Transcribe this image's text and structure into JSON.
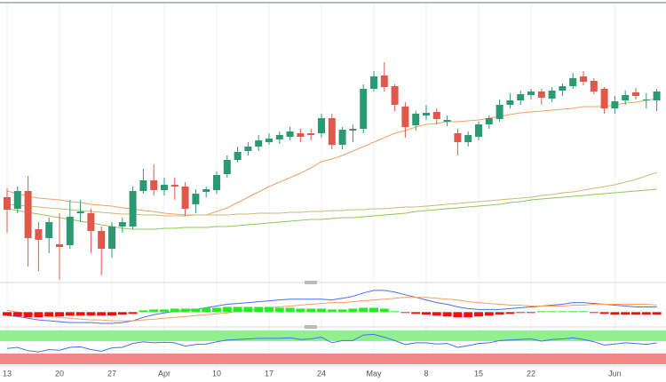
{
  "chart_data": [
    {
      "type": "candlestick",
      "categories": [
        "13",
        null,
        null,
        null,
        null,
        "20",
        null,
        null,
        null,
        null,
        "27",
        null,
        null,
        null,
        null,
        "Apr",
        null,
        null,
        null,
        null,
        "10",
        null,
        null,
        null,
        null,
        "17",
        null,
        null,
        null,
        null,
        "24",
        null,
        null,
        null,
        null,
        "May",
        null,
        null,
        null,
        null,
        "8",
        null,
        null,
        null,
        null,
        "15",
        null,
        null,
        null,
        null,
        "22",
        null,
        null,
        null,
        null,
        null,
        null,
        null,
        "Jun",
        null,
        null,
        null,
        null
      ],
      "open": [
        208,
        195,
        215,
        172,
        162,
        155,
        154,
        190,
        190,
        170,
        150,
        175,
        175,
        215,
        227,
        216,
        222,
        220,
        200,
        214,
        216,
        234,
        250,
        260,
        265,
        270,
        273,
        276,
        280,
        280,
        280,
        297,
        267,
        283,
        285,
        330,
        345,
        333,
        310,
        289,
        300,
        304,
        293,
        280,
        270,
        276,
        290,
        296,
        312,
        317,
        323,
        327,
        319,
        328,
        333,
        344,
        339,
        330,
        308,
        317,
        326,
        317,
        317
      ],
      "high": [
        218,
        220,
        232,
        180,
        185,
        190,
        205,
        205,
        195,
        175,
        180,
        185,
        220,
        240,
        245,
        230,
        230,
        225,
        217,
        220,
        237,
        255,
        265,
        270,
        278,
        280,
        282,
        287,
        285,
        285,
        302,
        302,
        287,
        290,
        335,
        350,
        360,
        335,
        315,
        305,
        312,
        308,
        300,
        285,
        282,
        293,
        300,
        318,
        325,
        328,
        330,
        330,
        332,
        336,
        348,
        350,
        342,
        332,
        322,
        328,
        331,
        325,
        330
      ],
      "low": [
        168,
        190,
        130,
        125,
        145,
        115,
        150,
        180,
        145,
        120,
        140,
        168,
        172,
        212,
        210,
        210,
        205,
        187,
        190,
        208,
        212,
        230,
        247,
        255,
        260,
        267,
        268,
        272,
        270,
        272,
        275,
        262,
        262,
        270,
        280,
        327,
        327,
        305,
        275,
        283,
        295,
        290,
        288,
        255,
        265,
        272,
        285,
        293,
        308,
        312,
        318,
        312,
        315,
        322,
        330,
        334,
        324,
        302,
        302,
        312,
        318,
        308,
        305
      ],
      "close": [
        194,
        215,
        162,
        160,
        180,
        152,
        186,
        192,
        170,
        150,
        175,
        180,
        215,
        227,
        216,
        222,
        220,
        195,
        212,
        217,
        233,
        250,
        259,
        265,
        272,
        274,
        278,
        282,
        276,
        278,
        297,
        267,
        284,
        285,
        330,
        344,
        332,
        312,
        287,
        302,
        303,
        296,
        295,
        270,
        278,
        290,
        297,
        312,
        317,
        324,
        327,
        320,
        328,
        333,
        342,
        338,
        327,
        308,
        316,
        323,
        322,
        318,
        327
      ],
      "up_color": "#2b9a72",
      "down_color": "#e0584a",
      "ylim": [
        115,
        425
      ],
      "lines": [
        {
          "color": "#f3a068",
          "values": [
            215,
            212,
            209,
            207,
            206,
            205,
            203,
            202,
            200,
            199,
            198,
            196,
            195,
            193,
            192,
            190,
            189,
            188,
            188,
            188,
            192,
            196,
            202,
            208,
            214,
            220,
            225,
            230,
            235,
            241,
            248,
            251,
            255,
            260,
            265,
            270,
            275,
            280,
            283,
            287,
            290,
            291,
            293,
            293,
            294,
            295,
            297,
            299,
            301,
            303,
            304,
            305,
            306,
            307,
            308,
            310,
            310,
            310,
            312,
            314,
            315,
            317,
            319
          ]
        },
        {
          "color": "#cdb877",
          "values": [
            200,
            199,
            198,
            197,
            196,
            195,
            194,
            193,
            192,
            191,
            190,
            189,
            189,
            188,
            188,
            187,
            187,
            187,
            188,
            188,
            188,
            188,
            189,
            189,
            190,
            190,
            190,
            191,
            191,
            192,
            192,
            193,
            193,
            194,
            194,
            195,
            195,
            196,
            197,
            197,
            198,
            199,
            200,
            201,
            202,
            203,
            204,
            205,
            206,
            207,
            208,
            210,
            211,
            213,
            214,
            216,
            218,
            220,
            222,
            225,
            228,
            232,
            236
          ]
        },
        {
          "color": "#8cc85a",
          "values": [
            195,
            193,
            191,
            189,
            187,
            185,
            183,
            181,
            179,
            177,
            175,
            173,
            172,
            172,
            172,
            173,
            173,
            174,
            174,
            174,
            175,
            175,
            176,
            177,
            178,
            179,
            180,
            181,
            182,
            183,
            183,
            184,
            185,
            185,
            186,
            187,
            188,
            189,
            190,
            192,
            193,
            194,
            195,
            196,
            197,
            198,
            199,
            200,
            202,
            203,
            205,
            206,
            207,
            208,
            209,
            210,
            211,
            212,
            213,
            214,
            215,
            216,
            217
          ]
        }
      ]
    },
    {
      "type": "macd",
      "ylim": [
        -15,
        30
      ],
      "pos_color": "#22ee22",
      "neg_color": "#ee1111",
      "histogram": [
        -4,
        -5,
        -6,
        -6,
        -5,
        -5,
        -4,
        -4,
        -4,
        -4,
        -4,
        -3,
        -2,
        2,
        3,
        3,
        4,
        4,
        4,
        5,
        5,
        6,
        6,
        6,
        6,
        6,
        5,
        5,
        4,
        4,
        4,
        3,
        3,
        4,
        5,
        5,
        4,
        1,
        -1,
        -2,
        -3,
        -4,
        -5,
        -6,
        -6,
        -5,
        -4,
        -3,
        -2,
        -1,
        -1,
        1,
        1,
        1,
        1,
        1,
        -1,
        -2,
        -3,
        -3,
        -3,
        -3,
        -3
      ],
      "lines": [
        {
          "color": "#4a6ef0",
          "values": [
            -4,
            -5,
            -7,
            -9,
            -10,
            -11,
            -12,
            -12,
            -12,
            -13,
            -13,
            -12,
            -10,
            -6,
            -3,
            -1,
            1,
            2,
            3,
            5,
            7,
            9,
            10,
            11,
            12,
            13,
            14,
            15,
            15,
            15,
            15,
            14,
            16,
            18,
            22,
            25,
            25,
            23,
            20,
            17,
            14,
            11,
            9,
            6,
            4,
            3,
            3,
            3,
            4,
            5,
            6,
            7,
            8,
            9,
            11,
            11,
            10,
            9,
            8,
            7,
            6,
            6,
            6
          ]
        },
        {
          "color": "#f3a068",
          "values": [
            2,
            0,
            -2,
            -3,
            -5,
            -6,
            -7,
            -8,
            -9,
            -9,
            -10,
            -10,
            -10,
            -9,
            -8,
            -7,
            -6,
            -5,
            -4,
            -3,
            -2,
            -1,
            1,
            2,
            3,
            5,
            6,
            7,
            8,
            9,
            10,
            11,
            11,
            12,
            13,
            14,
            15,
            16,
            17,
            17,
            17,
            16,
            15,
            14,
            12,
            11,
            10,
            9,
            8,
            8,
            7,
            7,
            7,
            7,
            8,
            8,
            9,
            9,
            9,
            9,
            9,
            9,
            8
          ]
        }
      ]
    },
    {
      "type": "rsi",
      "ylim": [
        20,
        80
      ],
      "color": "#4a6ef0",
      "values": [
        48,
        50,
        44,
        42,
        46,
        45,
        50,
        51,
        46,
        43,
        49,
        50,
        57,
        60,
        58,
        59,
        58,
        52,
        55,
        56,
        60,
        63,
        64,
        65,
        66,
        66,
        66,
        67,
        64,
        65,
        68,
        58,
        62,
        62,
        72,
        73,
        68,
        62,
        55,
        58,
        58,
        56,
        57,
        50,
        53,
        57,
        58,
        62,
        63,
        64,
        65,
        61,
        64,
        65,
        67,
        64,
        60,
        54,
        56,
        58,
        57,
        55,
        58
      ]
    }
  ]
}
